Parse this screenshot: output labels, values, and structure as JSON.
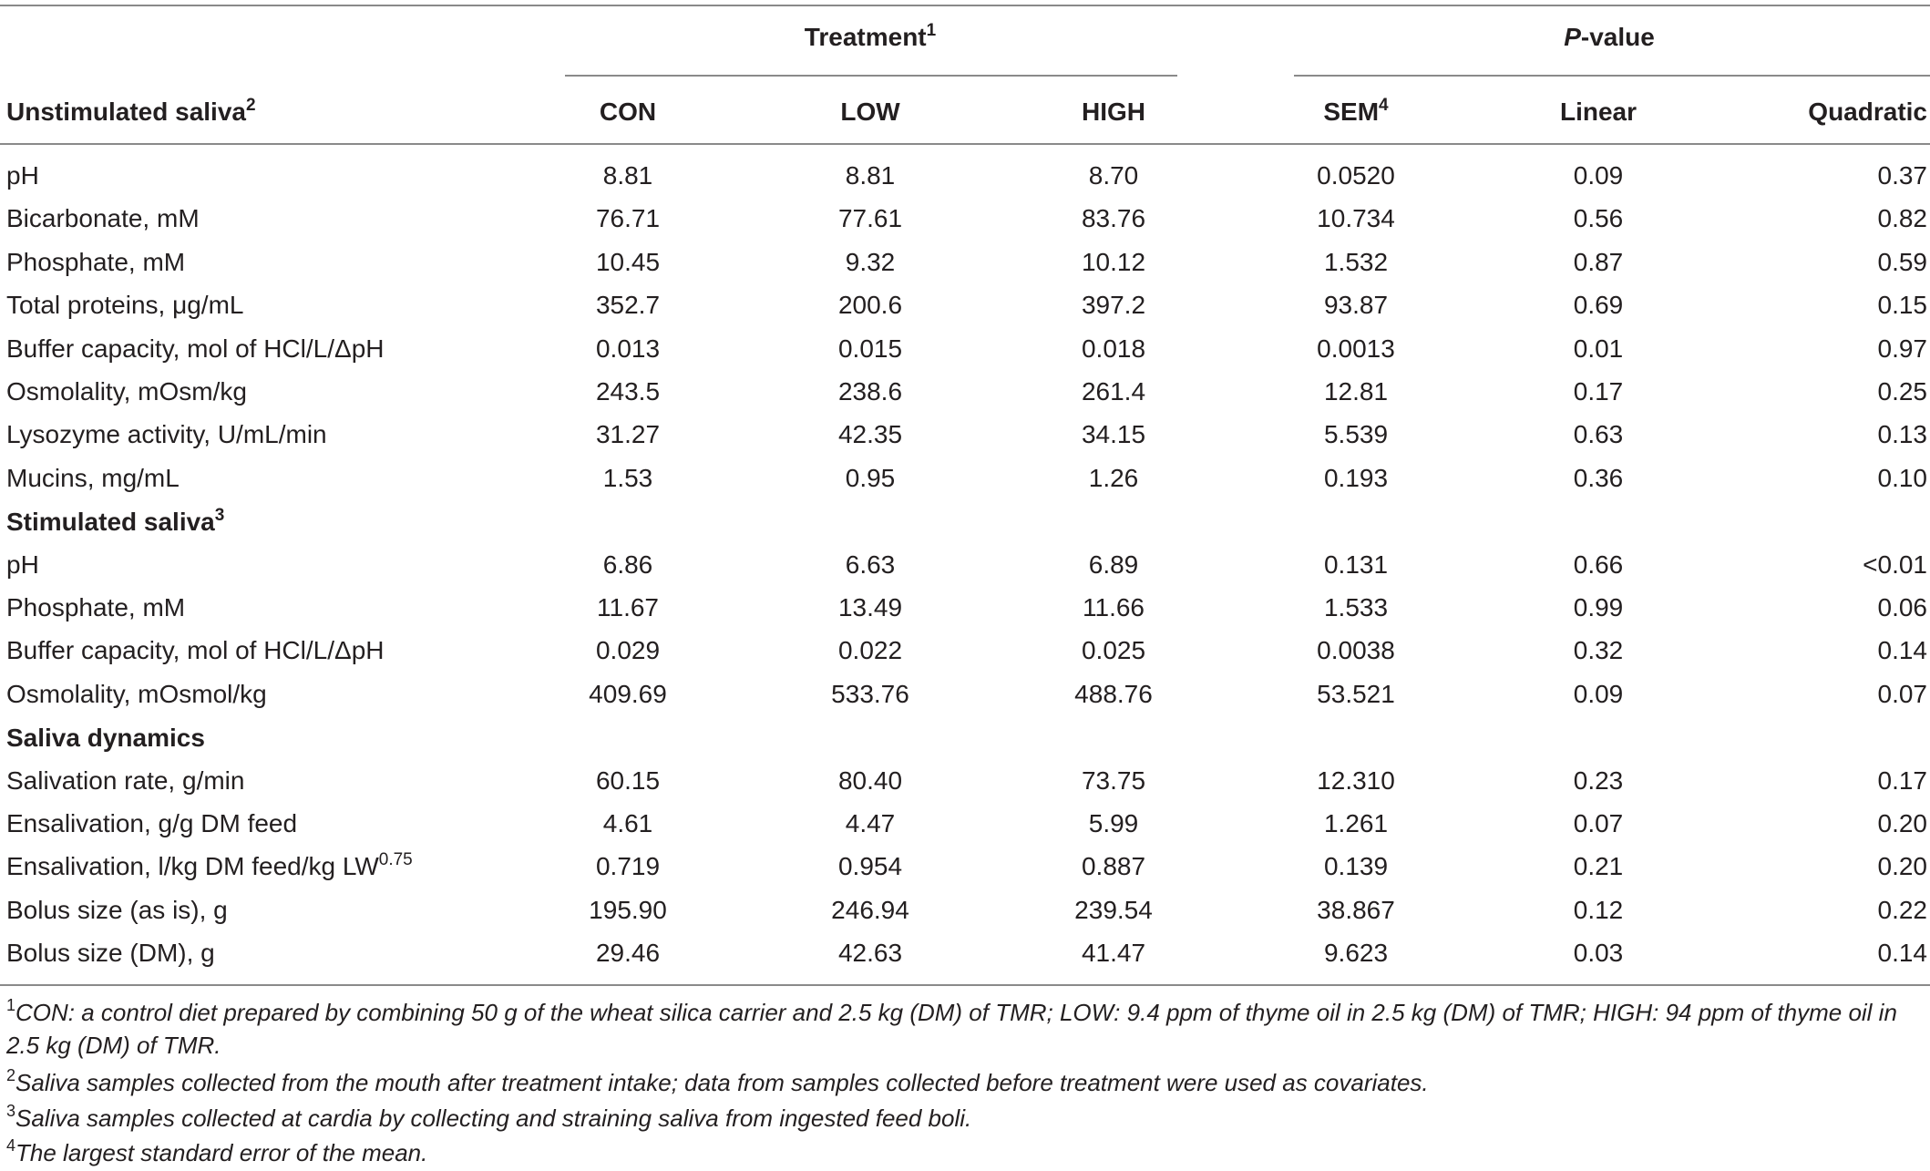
{
  "table": {
    "group_headers": {
      "treatment": "Treatment",
      "treatment_sup": "1",
      "pvalue_italic": "P",
      "pvalue_rest": "-value"
    },
    "columns": {
      "first": "Unstimulated saliva",
      "first_sup": "2",
      "con": "CON",
      "low": "LOW",
      "high": "HIGH",
      "sem": "SEM",
      "sem_sup": "4",
      "linear": "Linear",
      "quadratic": "Quadratic"
    },
    "unstimulated": [
      {
        "label": "pH",
        "con": "8.81",
        "low": "8.81",
        "high": "8.70",
        "sem": "0.0520",
        "linear": "0.09",
        "quadratic": "0.37"
      },
      {
        "label": "Bicarbonate, mM",
        "con": "76.71",
        "low": "77.61",
        "high": "83.76",
        "sem": "10.734",
        "linear": "0.56",
        "quadratic": "0.82"
      },
      {
        "label": "Phosphate, mM",
        "con": "10.45",
        "low": "9.32",
        "high": "10.12",
        "sem": "1.532",
        "linear": "0.87",
        "quadratic": "0.59"
      },
      {
        "label": "Total proteins, μg/mL",
        "con": "352.7",
        "low": "200.6",
        "high": "397.2",
        "sem": "93.87",
        "linear": "0.69",
        "quadratic": "0.15"
      },
      {
        "label": "Buffer capacity, mol of HCl/L/ΔpH",
        "con": "0.013",
        "low": "0.015",
        "high": "0.018",
        "sem": "0.0013",
        "linear": "0.01",
        "quadratic": "0.97"
      },
      {
        "label": "Osmolality, mOsm/kg",
        "con": "243.5",
        "low": "238.6",
        "high": "261.4",
        "sem": "12.81",
        "linear": "0.17",
        "quadratic": "0.25"
      },
      {
        "label": "Lysozyme activity, U/mL/min",
        "con": "31.27",
        "low": "42.35",
        "high": "34.15",
        "sem": "5.539",
        "linear": "0.63",
        "quadratic": "0.13"
      },
      {
        "label": "Mucins, mg/mL",
        "con": "1.53",
        "low": "0.95",
        "high": "1.26",
        "sem": "0.193",
        "linear": "0.36",
        "quadratic": "0.10"
      }
    ],
    "stimulated_header": "Stimulated saliva",
    "stimulated_header_sup": "3",
    "stimulated": [
      {
        "label": "pH",
        "con": "6.86",
        "low": "6.63",
        "high": "6.89",
        "sem": "0.131",
        "linear": "0.66",
        "quadratic": "<0.01"
      },
      {
        "label": "Phosphate, mM",
        "con": "11.67",
        "low": "13.49",
        "high": "11.66",
        "sem": "1.533",
        "linear": "0.99",
        "quadratic": "0.06"
      },
      {
        "label": "Buffer capacity, mol of HCl/L/ΔpH",
        "con": "0.029",
        "low": "0.022",
        "high": "0.025",
        "sem": "0.0038",
        "linear": "0.32",
        "quadratic": "0.14"
      },
      {
        "label": "Osmolality, mOsmol/kg",
        "con": "409.69",
        "low": "533.76",
        "high": "488.76",
        "sem": "53.521",
        "linear": "0.09",
        "quadratic": "0.07"
      }
    ],
    "dynamics_header": "Saliva dynamics",
    "dynamics": [
      {
        "label": "Salivation rate, g/min",
        "con": "60.15",
        "low": "80.40",
        "high": "73.75",
        "sem": "12.310",
        "linear": "0.23",
        "quadratic": "0.17"
      },
      {
        "label": "Ensalivation, g/g DM feed",
        "con": "4.61",
        "low": "4.47",
        "high": "5.99",
        "sem": "1.261",
        "linear": "0.07",
        "quadratic": "0.20"
      },
      {
        "label": "Ensalivation, l/kg DM feed/kg LW",
        "label_sup": "0.75",
        "con": "0.719",
        "low": "0.954",
        "high": "0.887",
        "sem": "0.139",
        "linear": "0.21",
        "quadratic": "0.20"
      },
      {
        "label": "Bolus size (as is), g",
        "con": "195.90",
        "low": "246.94",
        "high": "239.54",
        "sem": "38.867",
        "linear": "0.12",
        "quadratic": "0.22"
      },
      {
        "label": "Bolus size (DM), g",
        "con": "29.46",
        "low": "42.63",
        "high": "41.47",
        "sem": "9.623",
        "linear": "0.03",
        "quadratic": "0.14"
      }
    ]
  },
  "footnotes": [
    {
      "mark": "1",
      "text": "CON: a control diet prepared by combining 50 g of the wheat silica carrier and 2.5 kg (DM) of TMR; LOW: 9.4 ppm of thyme oil in 2.5 kg (DM) of TMR; HIGH: 94 ppm of thyme oil in 2.5 kg (DM) of TMR."
    },
    {
      "mark": "2",
      "text": "Saliva samples collected from the mouth after treatment intake; data from samples collected before treatment were used as covariates."
    },
    {
      "mark": "3",
      "text": "Saliva samples collected at cardia by collecting and straining saliva from ingested feed boli."
    },
    {
      "mark": "4",
      "text": "The largest standard error of the mean."
    }
  ]
}
